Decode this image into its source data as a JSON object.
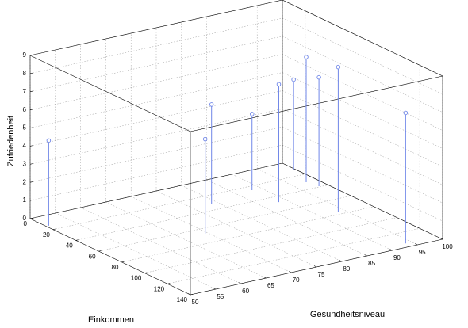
{
  "chart_data": {
    "type": "stem3",
    "x_label": "Gesundheitsniveau",
    "y_label": "Einkommen",
    "z_label": "Zufriedenheit",
    "x": [
      50.5,
      69.5,
      78.7,
      88.2,
      88.4,
      99.5,
      97.8,
      98.4,
      93.6,
      93.8
    ],
    "y": [
      14,
      67,
      32,
      25.5,
      48,
      12,
      30.5,
      39,
      77,
      135
    ],
    "z": [
      4.7,
      5.2,
      5.5,
      4.2,
      6.5,
      5.0,
      6.9,
      6.0,
      8.0,
      7.2
    ],
    "color": "#6f86e8",
    "xlim": [
      50,
      100
    ],
    "xticks": [
      50,
      55,
      60,
      65,
      70,
      75,
      80,
      85,
      90,
      95,
      100
    ],
    "ylim": [
      0,
      140
    ],
    "yticks": [
      0,
      20,
      40,
      60,
      80,
      100,
      120,
      140
    ],
    "zlim": [
      0,
      9
    ],
    "zticks": [
      0,
      1,
      2,
      3,
      4,
      5,
      6,
      7,
      8,
      9
    ],
    "grid": true
  }
}
